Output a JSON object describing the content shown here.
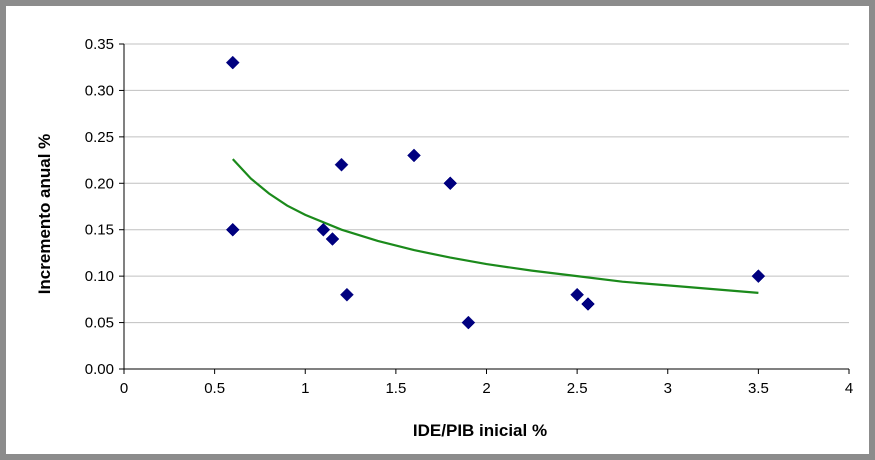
{
  "chart_data": {
    "type": "scatter",
    "xlabel": "IDE/PIB inicial %",
    "ylabel": "Incremento anual %",
    "xlim": [
      0,
      4
    ],
    "ylim": [
      0,
      0.35
    ],
    "x_ticks": [
      "0",
      "0.5",
      "1",
      "1.5",
      "2",
      "2.5",
      "3",
      "3.5",
      "4"
    ],
    "y_ticks": [
      "0.00",
      "0.05",
      "0.10",
      "0.15",
      "0.20",
      "0.25",
      "0.30",
      "0.35"
    ],
    "grid": "horizontal",
    "points": [
      {
        "x": 0.6,
        "y": 0.33
      },
      {
        "x": 0.6,
        "y": 0.15
      },
      {
        "x": 1.1,
        "y": 0.15
      },
      {
        "x": 1.15,
        "y": 0.14
      },
      {
        "x": 1.2,
        "y": 0.22
      },
      {
        "x": 1.23,
        "y": 0.08
      },
      {
        "x": 1.6,
        "y": 0.23
      },
      {
        "x": 1.8,
        "y": 0.2
      },
      {
        "x": 1.9,
        "y": 0.05
      },
      {
        "x": 2.5,
        "y": 0.08
      },
      {
        "x": 2.56,
        "y": 0.07
      },
      {
        "x": 3.5,
        "y": 0.1
      }
    ],
    "trendline": {
      "type": "power",
      "x": [
        0.6,
        0.7,
        0.8,
        0.9,
        1.0,
        1.2,
        1.4,
        1.6,
        1.8,
        2.0,
        2.25,
        2.5,
        2.75,
        3.0,
        3.25,
        3.5
      ],
      "y": [
        0.226,
        0.205,
        0.189,
        0.176,
        0.166,
        0.15,
        0.138,
        0.128,
        0.12,
        0.113,
        0.106,
        0.1,
        0.094,
        0.09,
        0.086,
        0.082
      ]
    },
    "marker_color": "#00007f",
    "trend_color": "#1b8a1b",
    "grid_color": "#c0c0c0"
  }
}
